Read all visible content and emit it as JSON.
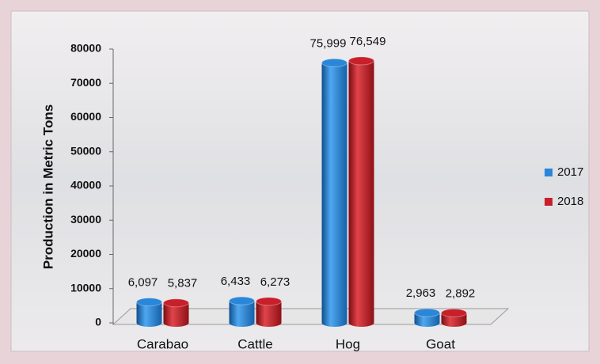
{
  "chart_data": {
    "type": "bar3d",
    "y_label": "Production in Metric Tons",
    "categories": [
      "Carabao",
      "Cattle",
      "Hog",
      "Goat"
    ],
    "series": [
      {
        "name": "2017",
        "color": "#2a86d8",
        "values": [
          6097,
          6433,
          75999,
          2963
        ],
        "value_labels": [
          "6,097",
          "6,433",
          "75,999",
          "2,963"
        ]
      },
      {
        "name": "2018",
        "color": "#c8202a",
        "values": [
          5837,
          6273,
          76549,
          2892
        ],
        "value_labels": [
          "5,837",
          "6,273",
          "76,549",
          "2,892"
        ]
      }
    ],
    "ylim": [
      0,
      80000
    ],
    "yticks": [
      0,
      10000,
      20000,
      30000,
      40000,
      50000,
      60000,
      70000,
      80000
    ],
    "legend": "right"
  }
}
